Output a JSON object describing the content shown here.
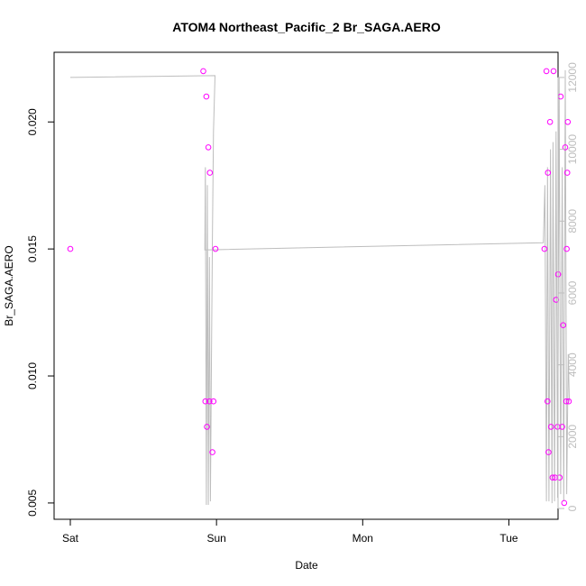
{
  "chart_data": {
    "type": "scatter",
    "title": "ATOM4 Northeast_Pacific_2 Br_SAGA.AERO",
    "xlabel": "Date",
    "ylabel": "Br_SAGA.AERO",
    "x_ticks": [
      "Sat",
      "Sun",
      "Mon",
      "Tue"
    ],
    "xlim": [
      "Sat 00:00",
      "Tue 06:00"
    ],
    "ylim": [
      0.0045,
      0.0226
    ],
    "y_ticks": [
      "0.005",
      "0.010",
      "0.015",
      "0.020"
    ],
    "y2lim": [
      -200,
      12600
    ],
    "y2_ticks": [
      "0",
      "2000",
      "4000",
      "6000",
      "8000",
      "10000",
      "12000"
    ],
    "grid": false,
    "legend": "none",
    "colors": {
      "points": "#ff00ff",
      "line": "#bdbdbd",
      "axis": "#000000",
      "right_axis": "#bdbdbd"
    },
    "series": [
      {
        "kind": "points",
        "x": [
          "Sat 00:00",
          "Sat 21:50",
          "Sat 22:10",
          "Sat 22:20",
          "Sat 22:25",
          "Sat 22:40",
          "Sat 22:50",
          "Sat 22:55",
          "Sat 23:20",
          "Sat 23:30",
          "Sat 23:50",
          "Tue 05:50",
          "Tue 06:10",
          "Tue 06:20",
          "Tue 06:25",
          "Tue 06:30",
          "Tue 06:45",
          "Tue 06:55",
          "Tue 07:10",
          "Tue 07:20",
          "Tue 07:35",
          "Tue 07:45",
          "Tue 08:00",
          "Tue 08:05",
          "Tue 08:20",
          "Tue 08:30",
          "Tue 08:45",
          "Tue 08:55",
          "Tue 09:05",
          "Tue 09:15",
          "Tue 09:25",
          "Tue 09:30",
          "Tue 09:35",
          "Tue 09:40",
          "Tue 09:50"
        ],
        "y": [
          0.015,
          0.022,
          0.009,
          0.021,
          0.008,
          0.019,
          0.009,
          0.018,
          0.007,
          0.009,
          0.015,
          0.015,
          0.022,
          0.009,
          0.018,
          0.007,
          0.02,
          0.008,
          0.006,
          0.022,
          0.006,
          0.013,
          0.008,
          0.014,
          0.006,
          0.021,
          0.008,
          0.012,
          0.005,
          0.019,
          0.009,
          0.015,
          0.018,
          0.02,
          0.009
        ]
      },
      {
        "kind": "line",
        "axis": "right",
        "x": [
          "Sat 00:00",
          "Sat 23:45",
          "Sat 23:40",
          "Sat 23:30",
          "Sat 23:20",
          "Sat 23:10",
          "Sat 23:00",
          "Sat 22:50",
          "Sat 22:40",
          "Sat 22:30",
          "Sat 22:20",
          "Sat 22:10",
          "Sat 22:05",
          "Tue 05:40",
          "Tue 05:55",
          "Tue 06:10",
          "Tue 06:20",
          "Tue 06:35",
          "Tue 06:50",
          "Tue 07:05",
          "Tue 07:15",
          "Tue 07:30",
          "Tue 07:45",
          "Tue 08:00",
          "Tue 08:15",
          "Tue 08:30",
          "Tue 08:45",
          "Tue 09:00",
          "Tue 09:15",
          "Tue 09:30",
          "Tue 09:45",
          "Tue 09:55"
        ],
        "y": [
          12000,
          12050,
          11500,
          10500,
          7500,
          4000,
          200,
          7000,
          100,
          9000,
          100,
          9500,
          7200,
          7400,
          9000,
          200,
          9500,
          200,
          10000,
          150,
          10200,
          200,
          10500,
          300,
          12000,
          400,
          9500,
          200,
          12200,
          400,
          4300,
          3000
        ]
      }
    ]
  }
}
